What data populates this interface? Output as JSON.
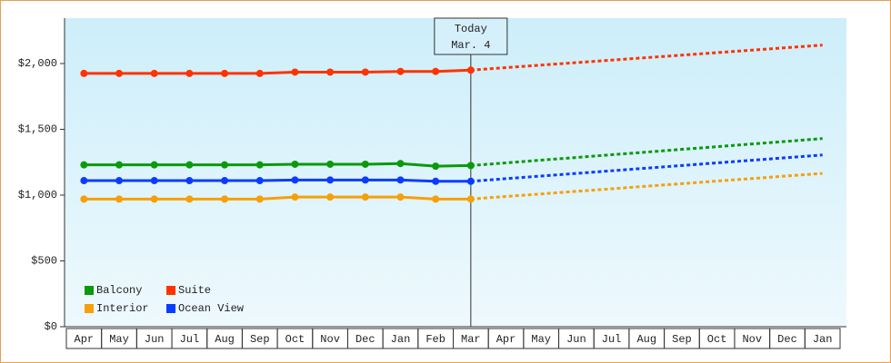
{
  "chart_data": {
    "type": "line",
    "categories": [
      "Apr",
      "May",
      "Jun",
      "Jul",
      "Aug",
      "Sep",
      "Oct",
      "Nov",
      "Dec",
      "Jan",
      "Feb",
      "Mar",
      "Apr",
      "May",
      "Jun",
      "Jul",
      "Aug",
      "Sep",
      "Oct",
      "Nov",
      "Dec",
      "Jan"
    ],
    "annotation": {
      "title": "Today",
      "date": "Mar. 4"
    },
    "ylim": [
      0,
      2345
    ],
    "yticks": [
      {
        "value": 0,
        "label": "$0"
      },
      {
        "value": 500,
        "label": "$500"
      },
      {
        "value": 1000,
        "label": "$1,000"
      },
      {
        "value": 1500,
        "label": "$1,500"
      },
      {
        "value": 2000,
        "label": "$2,000"
      }
    ],
    "series": [
      {
        "name": "Balcony",
        "color": "#0a9a0a",
        "values": [
          1230,
          1230,
          1230,
          1230,
          1230,
          1230,
          1235,
          1235,
          1235,
          1240,
          1220,
          1225,
          null,
          null,
          null,
          null,
          null,
          null,
          null,
          null,
          null,
          null
        ],
        "forecast": [
          null,
          null,
          null,
          null,
          null,
          null,
          null,
          null,
          null,
          null,
          null,
          1225,
          1245,
          1266,
          1286,
          1307,
          1327,
          1348,
          1368,
          1389,
          1409,
          1430
        ]
      },
      {
        "name": "Suite",
        "color": "#ff3300",
        "values": [
          1925,
          1925,
          1925,
          1925,
          1925,
          1925,
          1935,
          1935,
          1935,
          1940,
          1940,
          1950,
          null,
          null,
          null,
          null,
          null,
          null,
          null,
          null,
          null,
          null
        ],
        "forecast": [
          null,
          null,
          null,
          null,
          null,
          null,
          null,
          null,
          null,
          null,
          null,
          1950,
          1969,
          1988,
          2007,
          2026,
          2045,
          2064,
          2083,
          2102,
          2121,
          2140
        ]
      },
      {
        "name": "Interior",
        "color": "#f5a00a",
        "values": [
          970,
          970,
          970,
          970,
          970,
          970,
          985,
          985,
          985,
          985,
          970,
          970,
          null,
          null,
          null,
          null,
          null,
          null,
          null,
          null,
          null,
          null
        ],
        "forecast": [
          null,
          null,
          null,
          null,
          null,
          null,
          null,
          null,
          null,
          null,
          null,
          970,
          990,
          1009,
          1029,
          1048,
          1068,
          1087,
          1107,
          1126,
          1146,
          1165
        ]
      },
      {
        "name": "Ocean View",
        "color": "#0a3cff",
        "values": [
          1110,
          1110,
          1110,
          1110,
          1110,
          1110,
          1115,
          1115,
          1115,
          1115,
          1105,
          1105,
          null,
          null,
          null,
          null,
          null,
          null,
          null,
          null,
          null,
          null
        ],
        "forecast": [
          null,
          null,
          null,
          null,
          null,
          null,
          null,
          null,
          null,
          null,
          null,
          1105,
          1125,
          1145,
          1165,
          1185,
          1205,
          1225,
          1245,
          1265,
          1285,
          1305
        ]
      }
    ]
  }
}
